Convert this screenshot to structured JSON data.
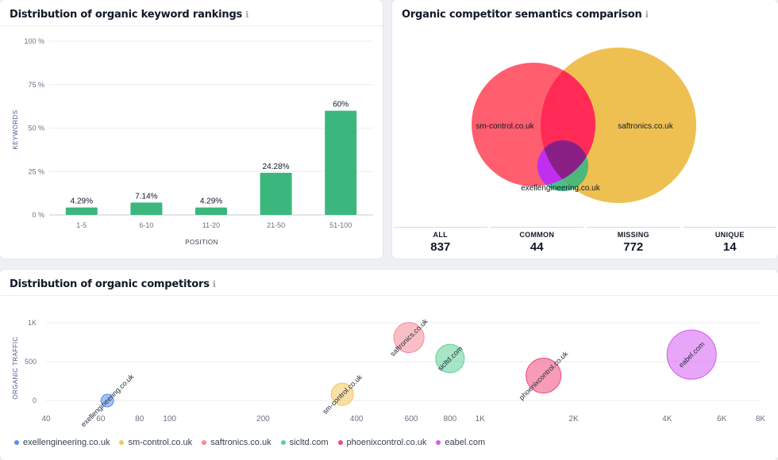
{
  "rankings": {
    "title": "Distribution of organic keyword rankings",
    "info_icon": "info-icon",
    "chart_data": {
      "type": "bar",
      "categories": [
        "1-5",
        "6-10",
        "11-20",
        "21-50",
        "51-100"
      ],
      "values": [
        4.29,
        7.14,
        4.29,
        24.28,
        60
      ],
      "data_labels": [
        "4.29%",
        "7.14%",
        "4.29%",
        "24.28%",
        "60%"
      ],
      "ylabel": "KEYWORDS",
      "xlabel": "POSITION",
      "ylim": [
        0,
        100
      ],
      "yticks": [
        0,
        25,
        50,
        75,
        100
      ],
      "ytick_labels": [
        "0 %",
        "25 %",
        "50 %",
        "75 %",
        "100 %"
      ],
      "bar_color": "#3bb77e",
      "grid": true
    }
  },
  "semantics": {
    "title": "Organic competitor semantics comparison",
    "info_icon": "info-icon",
    "chart_data": {
      "type": "venn",
      "sets": [
        {
          "name": "saftronics.co.uk",
          "color": "#ecb93f"
        },
        {
          "name": "sm-control.co.uk",
          "color": "#ff4c5e"
        },
        {
          "name": "exellengineering.co.uk",
          "color": "#3bb77e"
        }
      ]
    },
    "stats": [
      {
        "label": "ALL",
        "value": "837"
      },
      {
        "label": "COMMON",
        "value": "44"
      },
      {
        "label": "MISSING",
        "value": "772"
      },
      {
        "label": "UNIQUE",
        "value": "14"
      }
    ]
  },
  "competitors": {
    "title": "Distribution of organic competitors",
    "info_icon": "info-icon",
    "chart_data": {
      "type": "scatter",
      "ylabel": "ORGANIC TRAFFIC",
      "xscale": "log",
      "xlim": [
        40,
        8000
      ],
      "ylim": [
        0,
        1000
      ],
      "xticks": [
        40,
        60,
        80,
        100,
        200,
        400,
        600,
        800,
        1000,
        2000,
        4000,
        6000,
        8000
      ],
      "xtick_labels": [
        "40",
        "60",
        "80",
        "100",
        "200",
        "400",
        "600",
        "800",
        "1K",
        "2K",
        "4K",
        "6K",
        "8K"
      ],
      "yticks": [
        0,
        500,
        1000
      ],
      "ytick_labels": [
        "0",
        "500",
        "1K"
      ],
      "grid": true,
      "points": [
        {
          "name": "exellengineering.co.uk",
          "x": 63,
          "y": 0,
          "r": 8,
          "color": "#5b8def"
        },
        {
          "name": "sm-control.co.uk",
          "x": 360,
          "y": 80,
          "r": 14,
          "color": "#f2c75c"
        },
        {
          "name": "saftronics.co.uk",
          "x": 590,
          "y": 810,
          "r": 19,
          "color": "#f58a98"
        },
        {
          "name": "sicltd.com",
          "x": 800,
          "y": 540,
          "r": 18,
          "color": "#5fcf97"
        },
        {
          "name": "phoenixcontrol.co.uk",
          "x": 1600,
          "y": 320,
          "r": 22,
          "color": "#ef4b7b"
        },
        {
          "name": "eabel.com",
          "x": 4800,
          "y": 590,
          "r": 31,
          "color": "#d45cf0"
        }
      ]
    },
    "legend": [
      {
        "name": "exellengineering.co.uk",
        "color": "#5b8def"
      },
      {
        "name": "sm-control.co.uk",
        "color": "#f2c75c"
      },
      {
        "name": "saftronics.co.uk",
        "color": "#f58a98"
      },
      {
        "name": "sicltd.com",
        "color": "#5fcf97"
      },
      {
        "name": "phoenixcontrol.co.uk",
        "color": "#ef4b7b"
      },
      {
        "name": "eabel.com",
        "color": "#d45cf0"
      }
    ]
  }
}
